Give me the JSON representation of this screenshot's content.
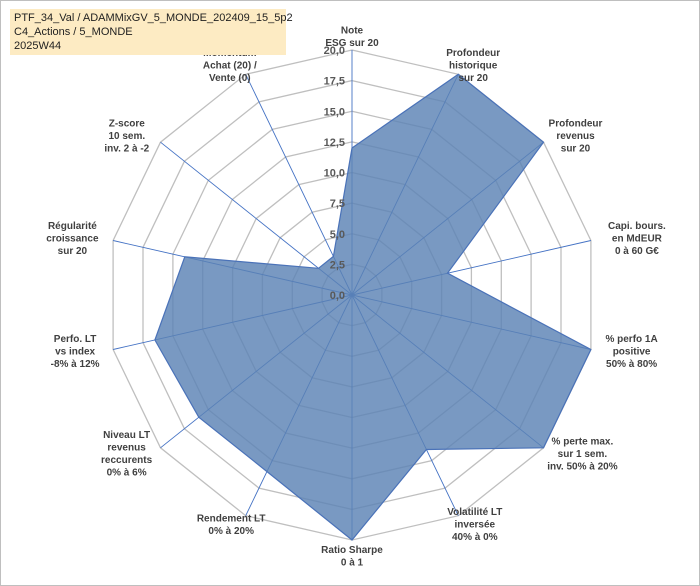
{
  "title": {
    "line1": "PTF_34_Val / ADAMMixGV_5_MONDE_202409_15_5p2",
    "line2": "C4_Actions / 5_MONDE",
    "line3": "2025W44"
  },
  "colors": {
    "fill": "#5b82b5",
    "stroke": "#4a72b8",
    "grid": "#bfbfbf",
    "axis": "#4472c4",
    "title_bg": "#fdebc3"
  },
  "chart_data": {
    "type": "radar",
    "rmin": 0,
    "rmax": 20,
    "ticks": [
      "0,0",
      "2,5",
      "5,0",
      "7,5",
      "10,0",
      "12,5",
      "15,0",
      "17,5",
      "20,0"
    ],
    "axes": [
      {
        "label": [
          "Note",
          "ESG sur 20"
        ],
        "value": 12
      },
      {
        "label": [
          "Profondeur",
          "historique",
          "sur 20"
        ],
        "value": 20
      },
      {
        "label": [
          "Profondeur",
          "revenus",
          "sur 20"
        ],
        "value": 20
      },
      {
        "label": [
          "Capi. bours.",
          "en MdEUR",
          "0 à 60 G€"
        ],
        "value": 8
      },
      {
        "label": [
          "% perfo 1A",
          "positive",
          "50% à 80%"
        ],
        "value": 20
      },
      {
        "label": [
          "% perte max.",
          "sur 1 sem.",
          "inv. 50% à 20%"
        ],
        "value": 20
      },
      {
        "label": [
          "Volatilité LT",
          "inversée",
          "40% à 0%"
        ],
        "value": 14
      },
      {
        "label": [
          "Ratio Sharpe",
          "0 à 1"
        ],
        "value": 20
      },
      {
        "label": [
          "Rendement LT",
          "0% à 20%"
        ],
        "value": 16
      },
      {
        "label": [
          "Niveau LT",
          "revenus",
          "reccurents",
          "0% à 6%"
        ],
        "value": 16
      },
      {
        "label": [
          "Perfo. LT",
          "vs index",
          "-8% à 12%"
        ],
        "value": 16.5
      },
      {
        "label": [
          "Régularité",
          "croissance",
          "sur 20"
        ],
        "value": 14
      },
      {
        "label": [
          "Z-score",
          "10 sem.",
          "inv. 2 à -2"
        ],
        "value": 3.5
      },
      {
        "label": [
          "Momentum",
          "Achat (20) /",
          "Vente (0)"
        ],
        "value": 3.5
      }
    ]
  }
}
